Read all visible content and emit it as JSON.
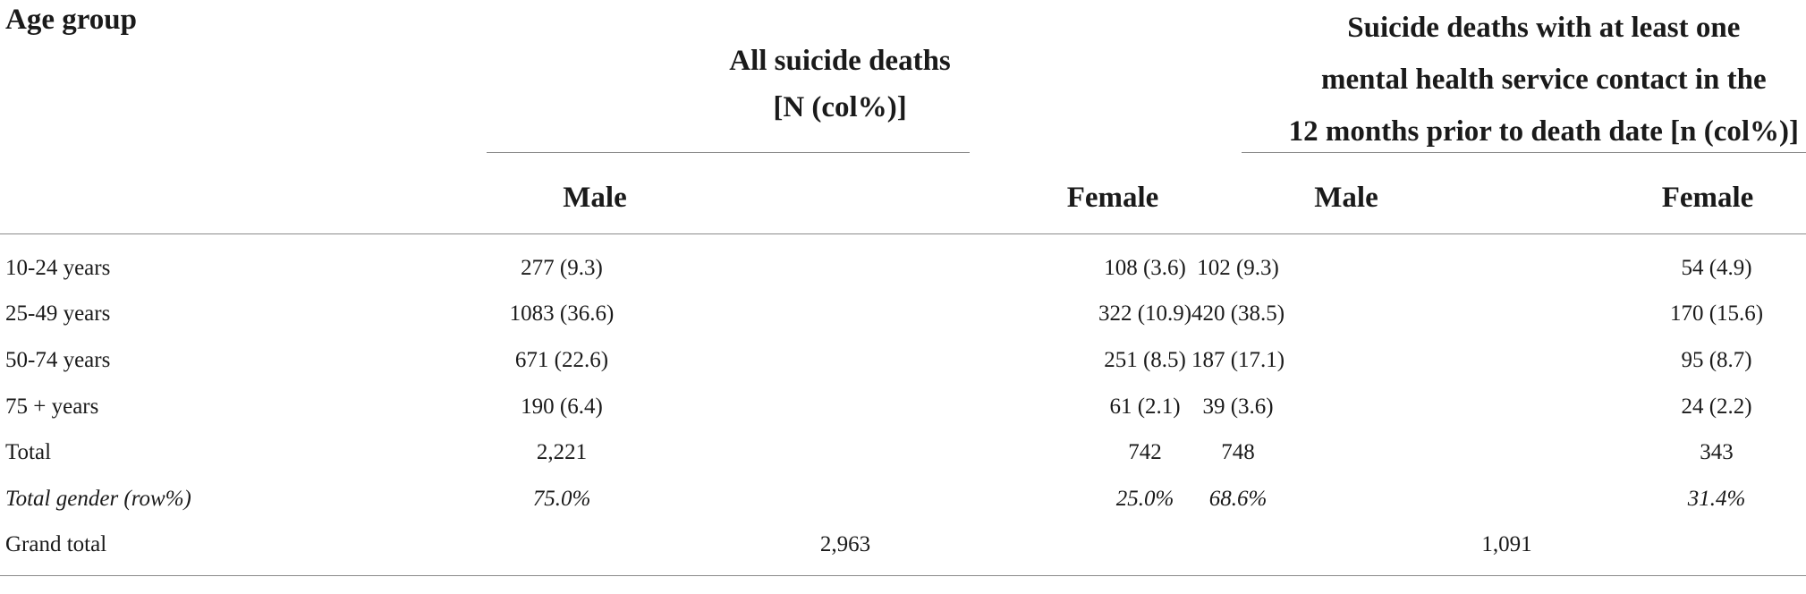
{
  "table": {
    "headers": {
      "age_group": "Age group",
      "group1": {
        "line1": "All suicide deaths",
        "line2": "[N (col%)]"
      },
      "group2": {
        "line1": "Suicide deaths with at least one",
        "line2": "mental health service contact in the",
        "line3": "12 months prior to death date [n (col%)]"
      },
      "sub": {
        "male1": "Male",
        "female1": "Female",
        "male2": "Male",
        "female2": "Female"
      }
    },
    "rows": [
      {
        "age": "10-24 years",
        "m1": "277 (9.3)",
        "f1": "108 (3.6)",
        "m2": "102 (9.3)",
        "f2": "54 (4.9)"
      },
      {
        "age": "25-49 years",
        "m1": "1083 (36.6)",
        "f1": "322 (10.9)",
        "m2": "420 (38.5)",
        "f2": "170 (15.6)"
      },
      {
        "age": "50-74 years",
        "m1": "671 (22.6)",
        "f1": "251 (8.5)",
        "m2": "187 (17.1)",
        "f2": "95 (8.7)"
      },
      {
        "age": "75 + years",
        "m1": "190 (6.4)",
        "f1": "61 (2.1)",
        "m2": "39 (3.6)",
        "f2": "24 (2.2)"
      },
      {
        "age": "Total",
        "m1": "2,221",
        "f1": "742",
        "m2": "748",
        "f2": "343"
      },
      {
        "age": "Total gender (row%)",
        "m1": "75.0%",
        "f1": "25.0%",
        "m2": "68.6%",
        "f2": "31.4%"
      }
    ],
    "grand_total": {
      "label": "Grand total",
      "group1": "2,963",
      "group2": "1,091"
    }
  }
}
